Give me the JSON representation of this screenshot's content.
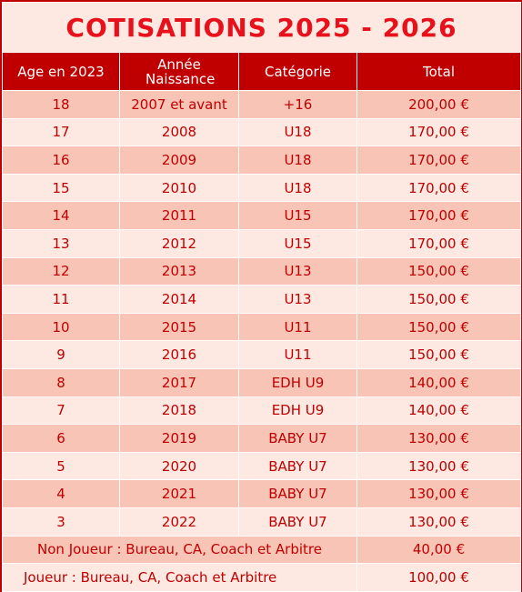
{
  "table": {
    "title": "COTISATIONS 2025 - 2026",
    "headers": [
      "Age en 2023",
      "Année Naissance",
      "Catégorie",
      "Total"
    ],
    "rows": [
      [
        "18",
        "2007 et avant",
        "+16",
        "200,00 €"
      ],
      [
        "17",
        "2008",
        "U18",
        "170,00 €"
      ],
      [
        "16",
        "2009",
        "U18",
        "170,00 €"
      ],
      [
        "15",
        "2010",
        "U18",
        "170,00 €"
      ],
      [
        "14",
        "2011",
        "U15",
        "170,00 €"
      ],
      [
        "13",
        "2012",
        "U15",
        "170,00 €"
      ],
      [
        "12",
        "2013",
        "U13",
        "150,00 €"
      ],
      [
        "11",
        "2014",
        "U13",
        "150,00 €"
      ],
      [
        "10",
        "2015",
        "U11",
        "150,00 €"
      ],
      [
        "9",
        "2016",
        "U11",
        "150,00 €"
      ],
      [
        "8",
        "2017",
        "EDH U9",
        "140,00 €"
      ],
      [
        "7",
        "2018",
        "EDH U9",
        "140,00 €"
      ],
      [
        "6",
        "2019",
        "BABY U7",
        "130,00 €"
      ],
      [
        "5",
        "2020",
        "BABY U7",
        "130,00 €"
      ],
      [
        "4",
        "2021",
        "BABY U7",
        "130,00 €"
      ],
      [
        "3",
        "2022",
        "BABY U7",
        "130,00 €"
      ],
      [
        "Non Joueur : Bureau, CA, Coach et Arbitre",
        "40,00 €"
      ],
      [
        "Joueur : Bureau, CA, Coach et Arbitre",
        "100,00 €"
      ]
    ]
  }
}
